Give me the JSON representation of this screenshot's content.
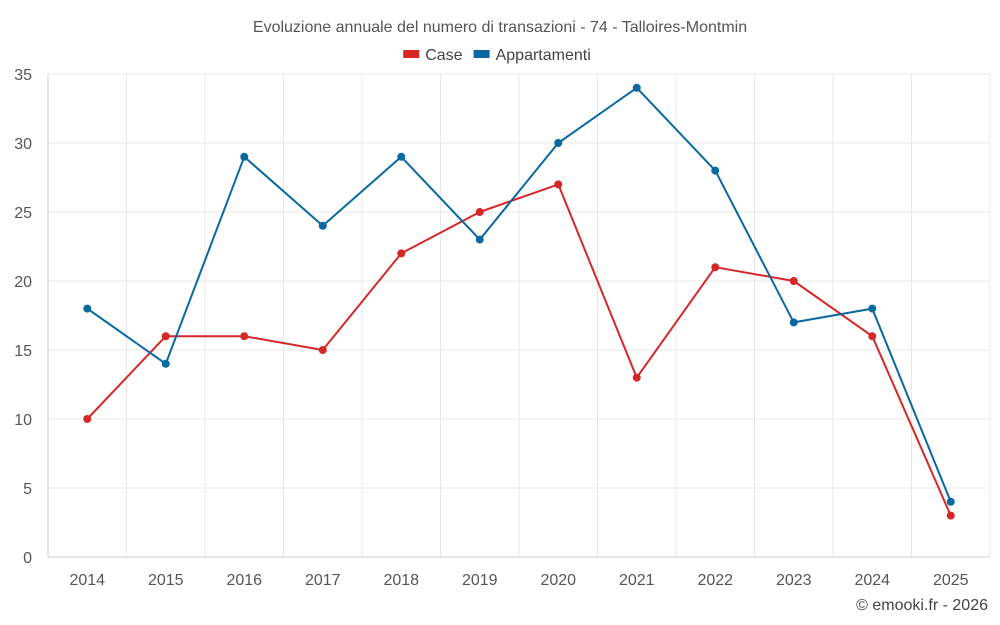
{
  "chart_data": {
    "type": "line",
    "title": "Evoluzione annuale del numero di transazioni - 74 - Talloires-Montmin",
    "categories": [
      "2014",
      "2015",
      "2016",
      "2017",
      "2018",
      "2019",
      "2020",
      "2021",
      "2022",
      "2023",
      "2024",
      "2025"
    ],
    "series": [
      {
        "name": "Case",
        "color": "#d62728",
        "values": [
          10,
          16,
          16,
          15,
          22,
          25,
          27,
          13,
          21,
          20,
          16,
          3
        ]
      },
      {
        "name": "Appartamenti",
        "color": "#0868a0",
        "values": [
          18,
          14,
          29,
          24,
          29,
          23,
          30,
          34,
          28,
          17,
          18,
          4
        ]
      }
    ],
    "ylim": [
      0,
      35
    ],
    "yticks": [
      0,
      5,
      10,
      15,
      20,
      25,
      30,
      35
    ],
    "xlabel": "",
    "ylabel": "",
    "grid": true,
    "legend": "top-center"
  },
  "credit": "© emooki.fr - 2026"
}
